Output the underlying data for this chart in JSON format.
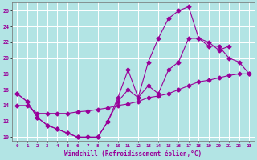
{
  "xlabel": "Windchill (Refroidissement éolien,°C)",
  "background_color": "#b2e4e4",
  "grid_color": "#ffffff",
  "line_color": "#990099",
  "xlim": [
    -0.5,
    23.5
  ],
  "ylim": [
    9.5,
    27
  ],
  "yticks": [
    10,
    12,
    14,
    16,
    18,
    20,
    22,
    24,
    26
  ],
  "xticks": [
    0,
    1,
    2,
    3,
    4,
    5,
    6,
    7,
    8,
    9,
    10,
    11,
    12,
    13,
    14,
    15,
    16,
    17,
    18,
    19,
    20,
    21,
    22,
    23
  ],
  "curve1_x": [
    0,
    1,
    2,
    3,
    4,
    5,
    6,
    7,
    8,
    9,
    10,
    11,
    12,
    13,
    14,
    15,
    16,
    17,
    18,
    19,
    20,
    21
  ],
  "curve1_y": [
    15.5,
    14.5,
    12.5,
    11.5,
    11.0,
    10.5,
    10.0,
    10.0,
    10.0,
    12.0,
    15.0,
    18.5,
    15.0,
    19.5,
    22.5,
    25.0,
    26.0,
    26.5,
    22.5,
    22.0,
    21.0,
    21.5
  ],
  "curve2_x": [
    0,
    1,
    2,
    3,
    4,
    5,
    6,
    7,
    8,
    9,
    10,
    11,
    12,
    13,
    14,
    15,
    16,
    17,
    18,
    19,
    20,
    21,
    22,
    23
  ],
  "curve2_y": [
    15.5,
    14.5,
    12.5,
    11.5,
    11.0,
    10.5,
    10.0,
    10.0,
    10.0,
    12.0,
    14.5,
    16.0,
    15.0,
    16.5,
    15.5,
    18.5,
    19.5,
    22.5,
    22.5,
    21.5,
    21.5,
    20.0,
    19.5,
    18.0
  ],
  "curve3_x": [
    0,
    1,
    2,
    3,
    4,
    5,
    6,
    7,
    8,
    9,
    10,
    11,
    12,
    13,
    14,
    15,
    16,
    17,
    18,
    19,
    20,
    21,
    22,
    23
  ],
  "curve3_y": [
    14.0,
    14.0,
    13.0,
    13.0,
    13.0,
    13.0,
    13.2,
    13.3,
    13.5,
    13.7,
    14.0,
    14.2,
    14.5,
    15.0,
    15.2,
    15.5,
    16.0,
    16.5,
    17.0,
    17.2,
    17.5,
    17.8,
    18.0,
    18.0
  ],
  "markersize": 2.5
}
